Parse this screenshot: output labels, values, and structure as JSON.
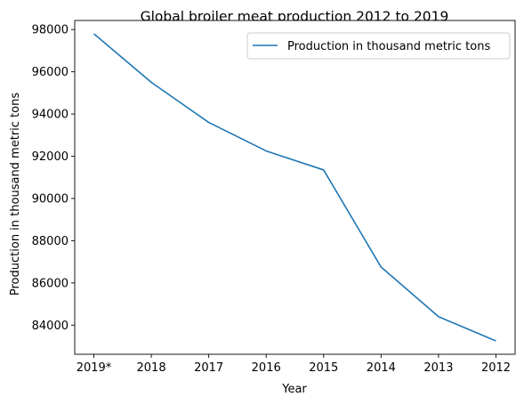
{
  "chart_data": {
    "type": "line",
    "title": "Global broiler meat production 2012 to 2019",
    "xlabel": "Year",
    "ylabel": "Production in thousand metric tons",
    "categories": [
      "2019*",
      "2018",
      "2017",
      "2016",
      "2015",
      "2014",
      "2013",
      "2012"
    ],
    "series": [
      {
        "name": "Production in thousand metric tons",
        "values": [
          97800,
          95500,
          93600,
          92250,
          91350,
          86750,
          84400,
          83250
        ],
        "color": "#1f77b4"
      }
    ],
    "ylim": [
      82620,
      98430
    ],
    "yticks": [
      84000,
      86000,
      88000,
      90000,
      92000,
      94000,
      96000,
      98000
    ],
    "grid": false,
    "legend_position": "top-right"
  }
}
